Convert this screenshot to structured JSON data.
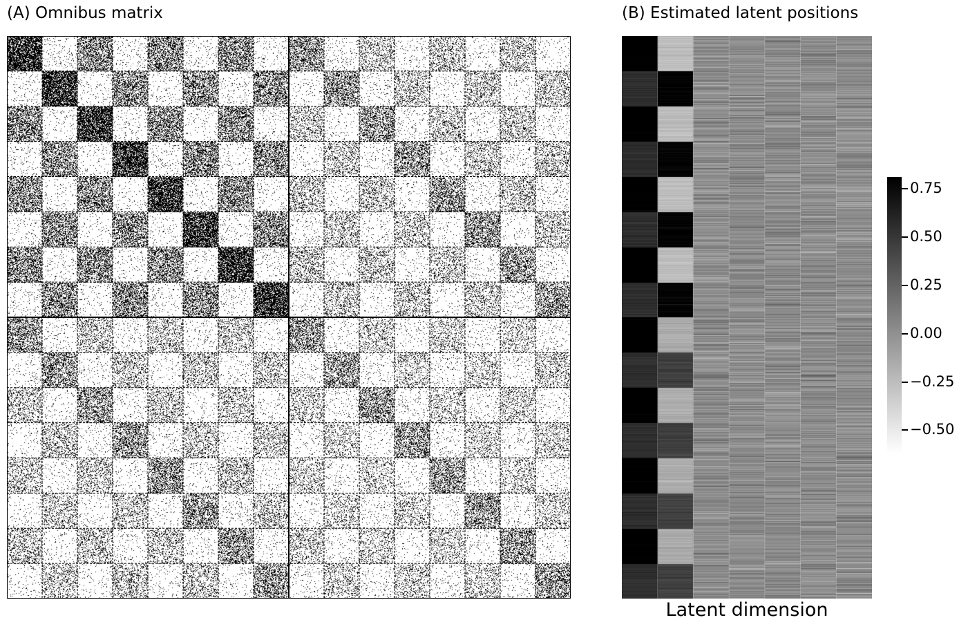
{
  "panels": {
    "a_title": "(A) Omnibus matrix",
    "b_title": "(B) Estimated latent positions"
  },
  "chart_data": [
    {
      "type": "heatmap",
      "title": "(A) Omnibus matrix",
      "description_matrix": {
        "networks": 2,
        "communities_per_network": 8,
        "community_pattern": "alternating two-block structure (odd/even communities)",
        "block_density_diag": 0.75,
        "block_density_within": 0.45,
        "block_density_offdiag": 0.05,
        "second_network_density_scale": 0.55
      },
      "colormap": "binary",
      "xlabel": "",
      "ylabel": "",
      "grid": false
    },
    {
      "type": "heatmap",
      "title": "(B) Estimated latent positions",
      "xlabel": "Latent dimension",
      "ylabel": "",
      "columns": 7,
      "row_groups": 16,
      "group_means": {
        "dim1_odd": 0.85,
        "dim1_even": 0.55,
        "dim2_odd": -0.25,
        "dim2_even": 0.8,
        "dim2_second_network_odd": -0.15,
        "dim2_second_network_even": 0.45,
        "dims3to7": 0.0
      },
      "colorbar": {
        "range": [
          -0.62,
          0.81
        ],
        "ticks": [
          "0.75",
          "0.50",
          "0.25",
          "0.00",
          "−0.25",
          "−0.50"
        ],
        "tick_values": [
          0.75,
          0.5,
          0.25,
          0.0,
          -0.25,
          -0.5
        ],
        "colormap": "gray_r"
      }
    }
  ]
}
